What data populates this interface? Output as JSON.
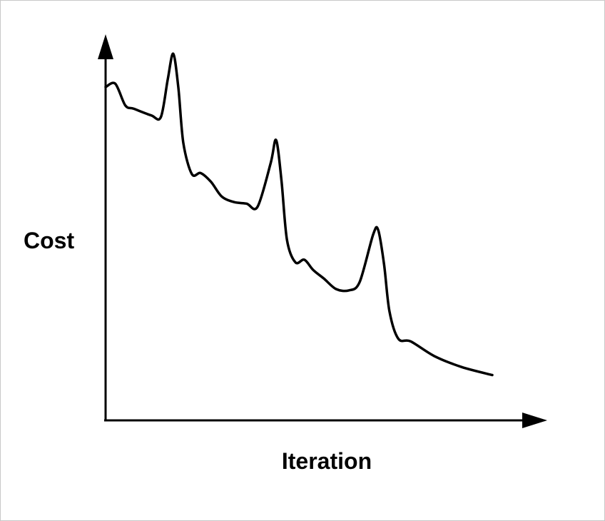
{
  "chart_data": {
    "type": "line",
    "title": "",
    "xlabel": "Iteration",
    "ylabel": "Cost",
    "grid": false,
    "legend": "none",
    "xlim": [
      0,
      100
    ],
    "ylim": [
      0,
      100
    ],
    "line_color": "#000000",
    "series": [
      {
        "x": [
          0,
          2.5,
          5.1,
          7.3,
          11.8,
          14.3,
          16.1,
          17.5,
          18.8,
          20.1,
          22.3,
          24.6,
          27.3,
          30.0,
          33.2,
          36.5,
          39.3,
          42.7,
          44.1,
          45.5,
          46.9,
          49.1,
          51.4,
          53.7,
          56.5,
          59.6,
          62.9,
          65.7,
          69.2,
          70.5,
          72.0,
          73.4,
          75.7,
          78.9,
          85.0,
          92.1,
          100
        ],
        "y": [
          100,
          101,
          94.5,
          93.5,
          91.5,
          91,
          102.5,
          110,
          100,
          83.3,
          73.9,
          74.2,
          71.5,
          67.2,
          65.5,
          65.0,
          64.1,
          77.2,
          84.1,
          71.8,
          54.2,
          47.4,
          48.2,
          45.1,
          42.5,
          39.4,
          39.0,
          41.5,
          55.8,
          57.1,
          47.0,
          32.8,
          24.5,
          23.7,
          19.3,
          16.0,
          13.6
        ]
      }
    ]
  }
}
